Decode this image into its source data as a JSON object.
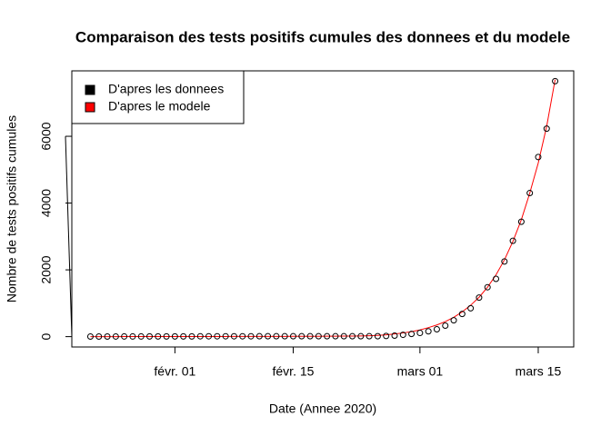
{
  "chart_data": {
    "type": "scatter-line",
    "title": "Comparaison des tests positifs cumules des donnees et du modele",
    "x_label": "Date (Annee 2020)",
    "y_label": "Nombre de tests positifs cumules",
    "x": [
      22,
      23,
      24,
      25,
      26,
      27,
      28,
      29,
      30,
      31,
      32,
      33,
      34,
      35,
      36,
      37,
      38,
      39,
      40,
      41,
      42,
      43,
      44,
      45,
      46,
      47,
      48,
      49,
      50,
      51,
      52,
      53,
      54,
      55,
      56,
      57,
      58,
      59,
      60,
      61,
      62,
      63,
      64,
      65,
      66,
      67,
      68,
      69,
      70,
      71,
      72,
      73,
      74,
      75,
      76,
      77
    ],
    "series": [
      {
        "name": "D'apres les donnees",
        "color": "#000000",
        "style": "points",
        "values": [
          3,
          3,
          3,
          4,
          5,
          5,
          5,
          6,
          6,
          6,
          6,
          6,
          6,
          11,
          11,
          11,
          11,
          11,
          11,
          11,
          12,
          12,
          12,
          12,
          12,
          12,
          12,
          12,
          12,
          12,
          12,
          12,
          12,
          12,
          14,
          20,
          30,
          55,
          80,
          110,
          160,
          220,
          330,
          490,
          680,
          850,
          1170,
          1480,
          1730,
          2250,
          2870,
          3440,
          4300,
          5380,
          6230,
          7650
        ]
      },
      {
        "name": "D'apres le modele",
        "color": "#ff0000",
        "style": "line",
        "values": [
          1,
          1,
          1,
          1,
          2,
          2,
          2,
          2,
          2,
          3,
          3,
          3,
          3,
          3,
          4,
          4,
          4,
          5,
          5,
          5,
          6,
          6,
          7,
          7,
          8,
          9,
          10,
          11,
          12,
          13,
          15,
          17,
          20,
          27,
          38,
          55,
          80,
          110,
          150,
          200,
          270,
          350,
          450,
          580,
          740,
          940,
          1180,
          1480,
          1850,
          2300,
          2850,
          3500,
          4300,
          5200,
          6300,
          7700
        ]
      }
    ],
    "xlim": [
      19.8,
      79.2
    ],
    "xticks": [
      {
        "value": 32,
        "label": "févr. 01"
      },
      {
        "value": 46,
        "label": "févr. 15"
      },
      {
        "value": 61,
        "label": "mars 01"
      },
      {
        "value": 75,
        "label": "mars 15"
      }
    ],
    "ylim": [
      -310,
      7960
    ],
    "yticks": [
      0,
      2000,
      4000,
      6000
    ],
    "legend": "top-left"
  }
}
